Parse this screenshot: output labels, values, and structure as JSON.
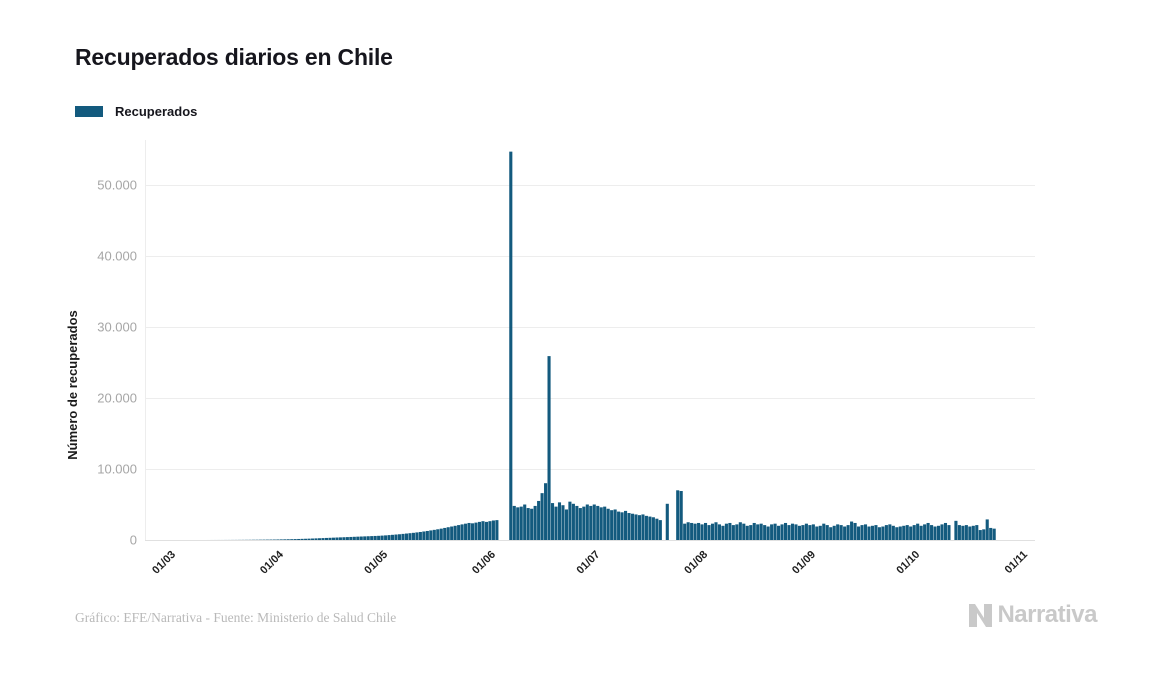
{
  "header": {
    "title": "Recuperados diarios en Chile"
  },
  "legend": {
    "label": "Recuperados",
    "color": "#135a7e"
  },
  "chart_data": {
    "type": "bar",
    "title": "Recuperados diarios en Chile",
    "series_name": "Recuperados",
    "xlabel": "",
    "ylabel": "Número de recuperados",
    "bar_color": "#135a7e",
    "grid": "horizontal",
    "legend_position": "top-left",
    "ylim": [
      0,
      56000
    ],
    "yticks": [
      {
        "value": 0,
        "label": "0"
      },
      {
        "value": 10000,
        "label": "10.000"
      },
      {
        "value": 20000,
        "label": "20.000"
      },
      {
        "value": 30000,
        "label": "30.000"
      },
      {
        "value": 40000,
        "label": "40.000"
      },
      {
        "value": 50000,
        "label": "50.000"
      }
    ],
    "xticks": [
      {
        "index": 0,
        "label": "01/03"
      },
      {
        "index": 31,
        "label": "01/04"
      },
      {
        "index": 61,
        "label": "01/05"
      },
      {
        "index": 92,
        "label": "01/06"
      },
      {
        "index": 122,
        "label": "01/07"
      },
      {
        "index": 153,
        "label": "01/08"
      },
      {
        "index": 184,
        "label": "01/09"
      },
      {
        "index": 214,
        "label": "01/10"
      },
      {
        "index": 245,
        "label": "01/11"
      }
    ],
    "values": [
      0,
      0,
      0,
      0,
      0,
      0,
      0,
      0,
      0,
      0,
      0,
      2,
      3,
      4,
      5,
      6,
      8,
      10,
      12,
      15,
      18,
      22,
      26,
      30,
      35,
      40,
      45,
      50,
      55,
      60,
      65,
      75,
      85,
      95,
      105,
      115,
      130,
      145,
      160,
      175,
      190,
      210,
      230,
      250,
      270,
      290,
      310,
      330,
      350,
      370,
      390,
      410,
      430,
      450,
      470,
      490,
      510,
      530,
      550,
      570,
      590,
      620,
      650,
      690,
      730,
      770,
      810,
      860,
      910,
      960,
      1010,
      1070,
      1130,
      1200,
      1270,
      1350,
      1430,
      1510,
      1600,
      1700,
      1800,
      1900,
      2000,
      2100,
      2200,
      2300,
      2400,
      2350,
      2450,
      2550,
      2650,
      2550,
      2650,
      2750,
      2800,
      0,
      0,
      0,
      54700,
      4800,
      4600,
      4700,
      5000,
      4500,
      4400,
      4800,
      5500,
      6600,
      8000,
      25900,
      5200,
      4700,
      5300,
      4900,
      4300,
      5400,
      5100,
      4800,
      4500,
      4700,
      5000,
      4800,
      5000,
      4800,
      4600,
      4700,
      4400,
      4200,
      4300,
      4000,
      3900,
      4100,
      3800,
      3700,
      3600,
      3500,
      3600,
      3400,
      3300,
      3200,
      3000,
      2800,
      0,
      5100,
      0,
      0,
      7000,
      6900,
      2300,
      2500,
      2400,
      2300,
      2400,
      2200,
      2400,
      2100,
      2300,
      2500,
      2200,
      2000,
      2300,
      2400,
      2100,
      2200,
      2500,
      2300,
      2000,
      2100,
      2400,
      2200,
      2300,
      2100,
      1900,
      2200,
      2300,
      2000,
      2200,
      2400,
      2100,
      2300,
      2200,
      2000,
      2100,
      2300,
      2100,
      2200,
      1900,
      2000,
      2300,
      2100,
      1800,
      2000,
      2200,
      2100,
      1900,
      2100,
      2600,
      2400,
      1900,
      2100,
      2200,
      1900,
      2000,
      2100,
      1800,
      1900,
      2100,
      2200,
      2000,
      1800,
      1900,
      2000,
      2100,
      1900,
      2100,
      2300,
      2000,
      2200,
      2400,
      2100,
      1900,
      2000,
      2200,
      2400,
      2100,
      0,
      2700,
      2100,
      2000,
      2100,
      1900,
      2000,
      2100,
      1400,
      1500,
      2900,
      1700,
      1600,
      0,
      0,
      0,
      0,
      0,
      0,
      0
    ]
  },
  "footer": {
    "credit": "Gráfico: EFE/Narrativa - Fuente: Ministerio de Salud Chile",
    "logo_text": "Narrativa"
  },
  "colors": {
    "background": "#ffffff",
    "title": "#16161d",
    "axis_tick": "#a6a6a6",
    "x_tick": "#1f1f1f",
    "grid": "#ededed",
    "axis_line": "#e0e0e0",
    "footer": "#b9b9b9",
    "logo": "#c9c9c9"
  }
}
